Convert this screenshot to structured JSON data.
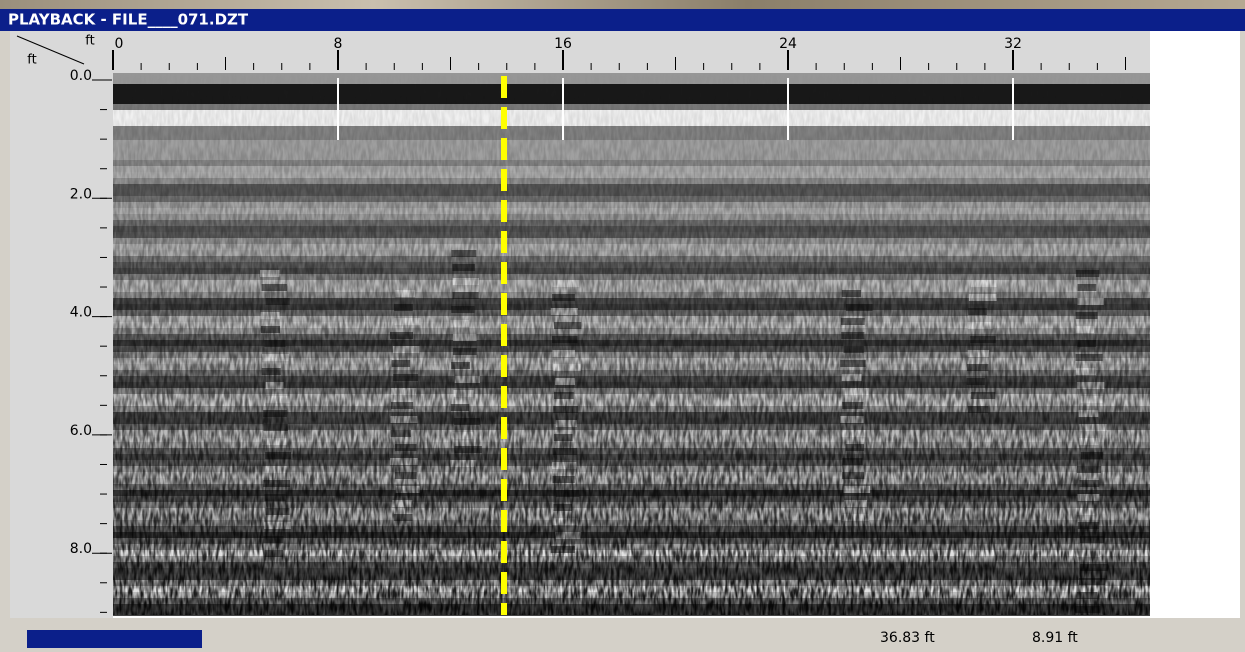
{
  "window": {
    "title": "PLAYBACK - FILE____071.DZT"
  },
  "ruler": {
    "corner_x_unit": "ft",
    "corner_y_unit": "ft",
    "x_ticks": [
      "0",
      "8",
      "16",
      "24",
      "32"
    ],
    "y_ticks": [
      "0.0",
      "2.0",
      "4.0",
      "6.0",
      "8.0"
    ]
  },
  "status": {
    "distance": "36.83 ft",
    "depth": "8.91 ft"
  }
}
